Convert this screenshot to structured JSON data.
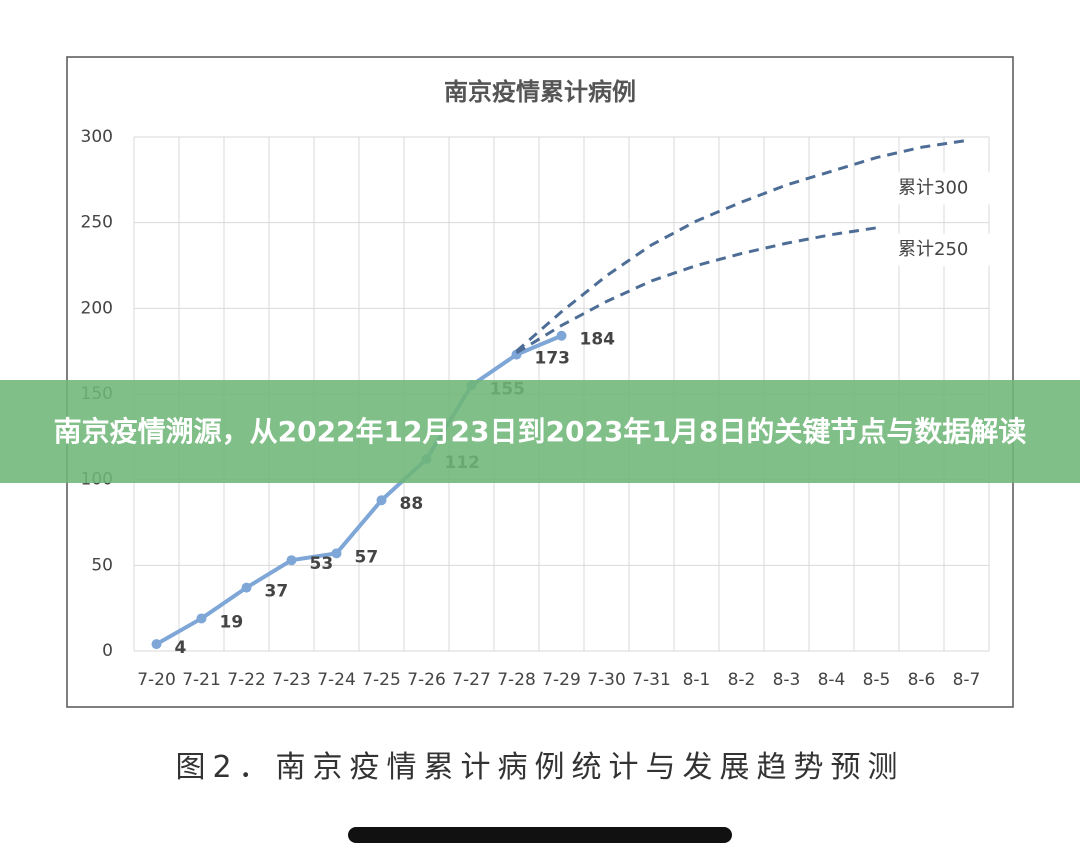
{
  "chart_data": {
    "type": "line",
    "title": "南京疫情累计病例",
    "categories": [
      "7-20",
      "7-21",
      "7-22",
      "7-23",
      "7-24",
      "7-25",
      "7-26",
      "7-27",
      "7-28",
      "7-29",
      "7-30",
      "7-31",
      "8-1",
      "8-2",
      "8-3",
      "8-4",
      "8-5",
      "8-6",
      "8-7"
    ],
    "series": [
      {
        "color": "#7ea6d6",
        "style": "solid",
        "values": [
          4,
          19,
          37,
          53,
          57,
          88,
          112,
          155,
          173,
          184,
          null,
          null,
          null,
          null,
          null,
          null,
          null,
          null,
          null
        ]
      },
      {
        "name": "累计300",
        "color": "#4d6d96",
        "style": "dashed",
        "values": [
          null,
          null,
          null,
          null,
          null,
          null,
          null,
          null,
          175,
          198,
          219,
          237,
          251,
          262,
          272,
          280,
          288,
          294,
          298
        ]
      },
      {
        "name": "累计250",
        "color": "#4d6d96",
        "style": "dashed",
        "values": [
          null,
          null,
          null,
          null,
          null,
          null,
          null,
          null,
          174,
          190,
          204,
          216,
          225,
          232,
          238,
          243,
          247,
          null,
          null
        ]
      }
    ],
    "ylim": [
      0,
      300
    ],
    "yticks": [
      0,
      50,
      100,
      150,
      200,
      250,
      300
    ],
    "grid": true
  },
  "headline": "南京疫情溯源，从2022年12月23日到2023年1月8日的关键节点与数据解读",
  "caption": "图2．南京疫情累计病例统计与发展趋势预测"
}
